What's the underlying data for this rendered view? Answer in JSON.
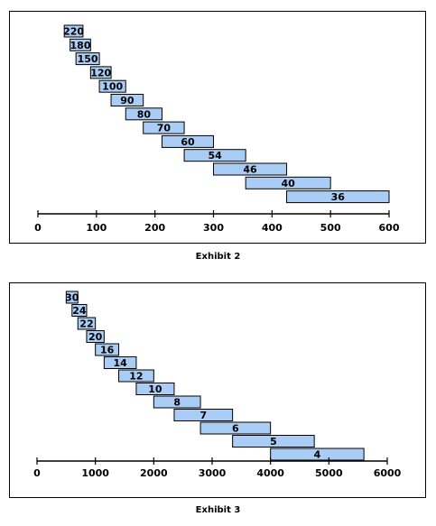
{
  "chart_data": [
    {
      "type": "bar",
      "orientation": "horizontal-floating",
      "caption": "Exhibit 2",
      "xlim": [
        0,
        600
      ],
      "xticks": [
        0,
        100,
        200,
        300,
        400,
        500,
        600
      ],
      "bars": [
        {
          "label": "220",
          "start": 45,
          "end": 77
        },
        {
          "label": "180",
          "start": 55,
          "end": 90
        },
        {
          "label": "150",
          "start": 65,
          "end": 105
        },
        {
          "label": "120",
          "start": 90,
          "end": 125
        },
        {
          "label": "100",
          "start": 105,
          "end": 150
        },
        {
          "label": "90",
          "start": 125,
          "end": 180
        },
        {
          "label": "80",
          "start": 150,
          "end": 212
        },
        {
          "label": "70",
          "start": 180,
          "end": 250
        },
        {
          "label": "60",
          "start": 212,
          "end": 300
        },
        {
          "label": "54",
          "start": 250,
          "end": 355
        },
        {
          "label": "46",
          "start": 300,
          "end": 425
        },
        {
          "label": "40",
          "start": 355,
          "end": 500
        },
        {
          "label": "36",
          "start": 425,
          "end": 600
        }
      ]
    },
    {
      "type": "bar",
      "orientation": "horizontal-floating",
      "caption": "Exhibit 3",
      "xlim": [
        0,
        6000
      ],
      "xticks": [
        0,
        1000,
        2000,
        3000,
        4000,
        5000,
        6000
      ],
      "bars": [
        {
          "label": "30",
          "start": 500,
          "end": 700
        },
        {
          "label": "24",
          "start": 600,
          "end": 850
        },
        {
          "label": "22",
          "start": 700,
          "end": 1000
        },
        {
          "label": "20",
          "start": 850,
          "end": 1150
        },
        {
          "label": "16",
          "start": 1000,
          "end": 1400
        },
        {
          "label": "14",
          "start": 1150,
          "end": 1700
        },
        {
          "label": "12",
          "start": 1400,
          "end": 2000
        },
        {
          "label": "10",
          "start": 1700,
          "end": 2350
        },
        {
          "label": "8",
          "start": 2000,
          "end": 2800
        },
        {
          "label": "7",
          "start": 2350,
          "end": 3350
        },
        {
          "label": "6",
          "start": 2800,
          "end": 4000
        },
        {
          "label": "5",
          "start": 3350,
          "end": 4750
        },
        {
          "label": "4",
          "start": 4000,
          "end": 5600
        }
      ]
    }
  ]
}
